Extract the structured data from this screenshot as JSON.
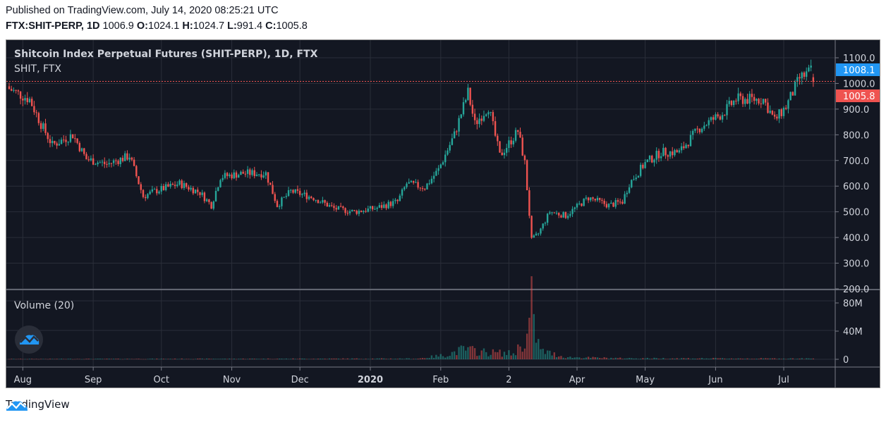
{
  "header": {
    "published": "Published on TradingView.com, July 14, 2020 08:25:21 UTC",
    "symbol": "FTX:SHIT-PERP, 1D",
    "last": "1006.9",
    "o_label": "O:",
    "o": "1024.1",
    "h_label": "H:",
    "h": "1024.7",
    "l_label": "L:",
    "l": "991.4",
    "c_label": "C:",
    "c": "1005.8"
  },
  "chart": {
    "title": "Shitcoin Index Perpetual Futures (SHIT-PERP), 1D, FTX",
    "subtitle": "SHIT, FTX",
    "volume_label": "Volume (20)"
  },
  "footer": {
    "brand": "TradingView"
  },
  "colors": {
    "up": "#26a69a",
    "down": "#ef5350",
    "bg": "#131722",
    "grid": "#2a2e39",
    "blue": "#2196f3"
  },
  "chart_data": {
    "type": "candlestick",
    "interval": "1D",
    "start_date": "2019-07-26",
    "price_ticks": [
      "1100.0",
      "1000.0",
      "900.0",
      "800.0",
      "700.0",
      "600.0",
      "500.0",
      "400.0",
      "300.0",
      "200.0"
    ],
    "price_tick_values": [
      1100,
      1000,
      900,
      800,
      700,
      600,
      500,
      400,
      300,
      200
    ],
    "ylim": [
      195,
      1135
    ],
    "volume_ticks": [
      "80M",
      "40M",
      "0"
    ],
    "volume_tick_values": [
      80,
      40,
      0
    ],
    "volume_unit": "M",
    "time_ticks": [
      {
        "label": "Aug",
        "day": 6
      },
      {
        "label": "Sep",
        "day": 37
      },
      {
        "label": "Oct",
        "day": 67
      },
      {
        "label": "Nov",
        "day": 98
      },
      {
        "label": "Dec",
        "day": 128
      },
      {
        "label": "2020",
        "day": 159
      },
      {
        "label": "Feb",
        "day": 190
      },
      {
        "label": "2",
        "day": 220
      },
      {
        "label": "Apr",
        "day": 250
      },
      {
        "label": "May",
        "day": 280
      },
      {
        "label": "Jun",
        "day": 311
      },
      {
        "label": "Jul",
        "day": 341
      }
    ],
    "close_keypoints_day_price": [
      [
        0,
        979
      ],
      [
        9,
        938
      ],
      [
        14,
        842
      ],
      [
        19,
        760
      ],
      [
        28,
        800
      ],
      [
        34,
        705
      ],
      [
        43,
        685
      ],
      [
        53,
        718
      ],
      [
        59,
        560
      ],
      [
        64,
        580
      ],
      [
        75,
        610
      ],
      [
        84,
        575
      ],
      [
        89,
        525
      ],
      [
        93,
        636
      ],
      [
        103,
        650
      ],
      [
        113,
        650
      ],
      [
        118,
        525
      ],
      [
        124,
        580
      ],
      [
        134,
        555
      ],
      [
        143,
        513
      ],
      [
        152,
        500
      ],
      [
        161,
        513
      ],
      [
        171,
        540
      ],
      [
        175,
        610
      ],
      [
        183,
        595
      ],
      [
        189,
        664
      ],
      [
        196,
        800
      ],
      [
        202,
        965
      ],
      [
        205,
        842
      ],
      [
        211,
        910
      ],
      [
        216,
        718
      ],
      [
        224,
        815
      ],
      [
        227,
        690
      ],
      [
        230,
        390
      ],
      [
        233,
        415
      ],
      [
        238,
        500
      ],
      [
        245,
        485
      ],
      [
        255,
        555
      ],
      [
        264,
        525
      ],
      [
        270,
        540
      ],
      [
        273,
        610
      ],
      [
        280,
        690
      ],
      [
        287,
        732
      ],
      [
        295,
        732
      ],
      [
        304,
        828
      ],
      [
        314,
        883
      ],
      [
        320,
        938
      ],
      [
        326,
        938
      ],
      [
        332,
        938
      ],
      [
        337,
        856
      ],
      [
        342,
        910
      ],
      [
        348,
        1020
      ],
      [
        353,
        1048
      ],
      [
        354,
        1005.8
      ]
    ],
    "volume_keypoints_day_millions": [
      [
        0,
        0.5
      ],
      [
        180,
        1
      ],
      [
        192,
        6
      ],
      [
        200,
        14
      ],
      [
        210,
        10
      ],
      [
        222,
        8
      ],
      [
        228,
        30
      ],
      [
        230,
        80
      ],
      [
        231,
        45
      ],
      [
        234,
        12
      ],
      [
        245,
        3
      ],
      [
        270,
        1.5
      ],
      [
        354,
        1
      ]
    ],
    "last_price_labels": {
      "blue": "1008.1",
      "red": "1005.8"
    }
  }
}
